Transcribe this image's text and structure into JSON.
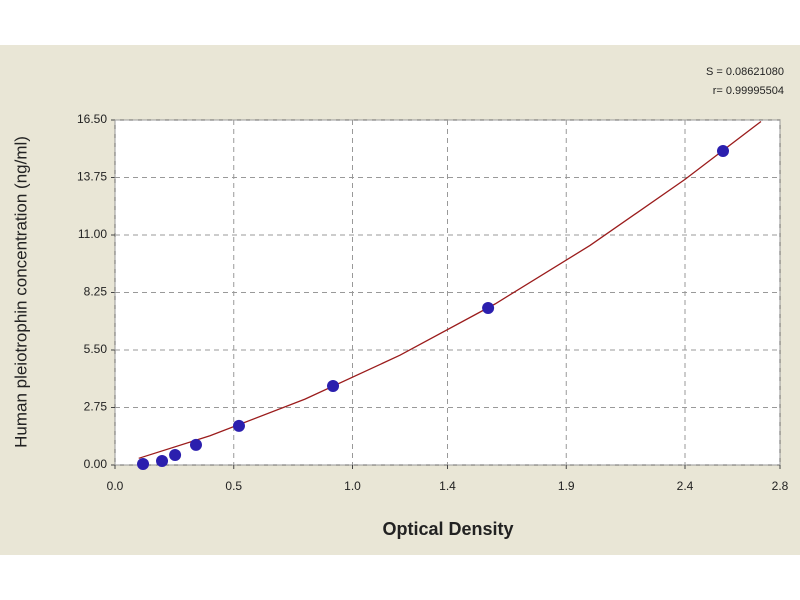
{
  "chart_data": {
    "type": "scatter",
    "x_label": "Optical Density",
    "y_label": "Human pleiotrophin concentration (ng/ml)",
    "annotations": [
      "S = 0.08621080",
      "r= 0.99995504"
    ],
    "xlim": [
      0,
      2.8
    ],
    "xticks": [
      {
        "value": 0,
        "label": "0.0"
      },
      0.5,
      {
        "value": 1,
        "label": "1.0"
      },
      1.4,
      1.9,
      2.4,
      2.8
    ],
    "ylim": [
      0,
      16.5
    ],
    "yticks": [
      {
        "value": 0,
        "label": "0.00"
      },
      2.75,
      {
        "value": 5.5,
        "label": "5.50"
      },
      8.25,
      {
        "value": 11,
        "label": "11.00"
      },
      13.75,
      {
        "value": 16.5,
        "label": "16.50"
      }
    ],
    "grid": true,
    "series": [
      {
        "type": "line",
        "color": "#9b1c1c",
        "x": [
          0.1,
          0.4,
          0.8,
          1.2,
          1.6,
          2.0,
          2.4,
          2.72
        ],
        "values": [
          0.32,
          1.4,
          3.15,
          5.25,
          7.7,
          10.5,
          13.66,
          16.43
        ]
      },
      {
        "type": "scatter",
        "color": "#2b1fae",
        "x": [
          0.118,
          0.198,
          0.253,
          0.341,
          0.522,
          0.918,
          1.571,
          2.56
        ],
        "values": [
          0.05,
          0.19,
          0.48,
          0.96,
          1.87,
          3.78,
          7.51,
          15.02
        ]
      }
    ]
  }
}
